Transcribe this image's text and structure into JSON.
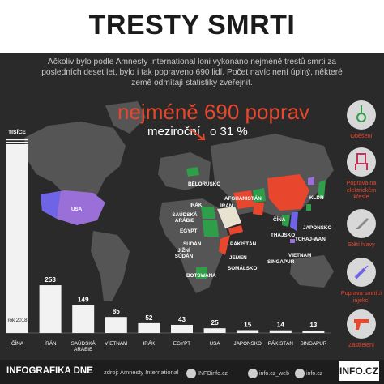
{
  "title": "TRESTY SMRTI",
  "intro": "Ačkoliv bylo podle Amnesty International loni vykonáno nejméně trestů smrti za posledních deset let, bylo i tak popraveno 690 lidí. Počet navíc není úplný, některé země odmítají statistiky zveřejnit.",
  "headline": "nejméně 690 poprav",
  "yoy_label": "meziroční",
  "yoy_value": "o 31 %",
  "map_labels": {
    "usa": "USA",
    "belorusko": "BĚLORUSKO",
    "afghanistan": "AFGHÁNISTÁN",
    "irak": "IRÁK",
    "iran": "ÍRÁN",
    "saudska": "SAÚDSKÁ ARÁBIE",
    "egypt": "EGYPT",
    "pakistan": "PÁKISTÁN",
    "sudan": "SÚDÁN",
    "jizni_sudan": "JIŽNÍ SÚDÁN",
    "jemen": "JEMEN",
    "somalsko": "SOMÁLSKO",
    "botswana": "BOTSWANA",
    "cina": "ČÍNA",
    "kldr": "KLDR",
    "japonsko": "JAPONSKO",
    "thajsko": "THAJSKO",
    "tchaj_wan": "TCHAJ-WAN",
    "vietnam": "VIETNAM",
    "singapur": "SINGAPUR"
  },
  "methods": [
    {
      "label": "Oběšení",
      "icon": "noose-icon"
    },
    {
      "label": "Poprava na elektrickém křesle",
      "icon": "electric-chair-icon"
    },
    {
      "label": "Stětí hlavy",
      "icon": "knife-icon"
    },
    {
      "label": "Poprava smrtící injekcí",
      "icon": "syringe-icon"
    },
    {
      "label": "Zastřelení",
      "icon": "pistol-icon"
    }
  ],
  "chart_data": {
    "type": "bar",
    "unit_label": "TISÍCE",
    "first_bar_note": "rok 2018",
    "categories": [
      "ČÍNA",
      "ÍRÁN",
      "SAÚDSKÁ ARÁBIE",
      "VIETNAM",
      "IRÁK",
      "EGYPT",
      "USA",
      "JAPONSKO",
      "PÁKISTÁN",
      "SINGAPUR"
    ],
    "value_labels": [
      "",
      "253",
      "149",
      "85",
      "52",
      "43",
      "25",
      "15",
      "14",
      "13"
    ],
    "values": [
      1000,
      253,
      149,
      85,
      52,
      43,
      25,
      15,
      14,
      13
    ],
    "ymax": 1000
  },
  "footer": {
    "brand": "INFOGRAFIKA DNE",
    "source": "zdroj: Amnesty International",
    "fb": "INFOinfo.cz",
    "tw": "info.cz_web",
    "ig": "info.cz",
    "logo": "INFO.CZ"
  },
  "colors": {
    "accent": "#e8472e",
    "bar": "#f2f2f2",
    "map_land": "#555555",
    "purple": "#7b6ee0",
    "green": "#2e9e49"
  }
}
